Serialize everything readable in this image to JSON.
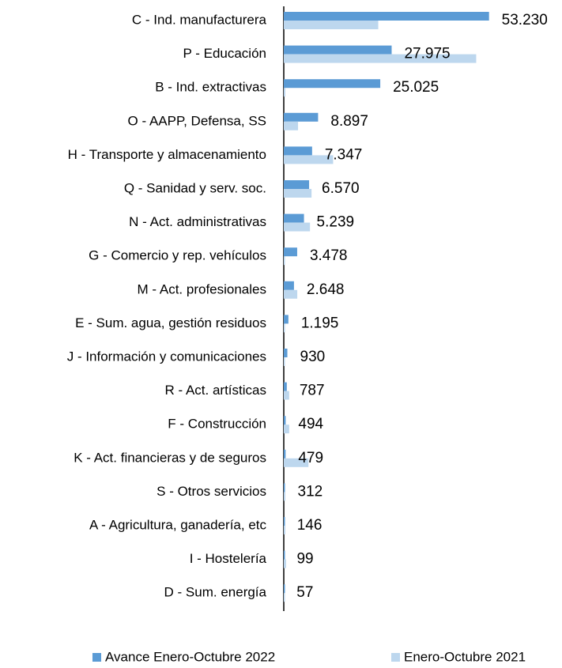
{
  "chart_data": {
    "type": "bar",
    "orientation": "horizontal",
    "categories": [
      "C - Ind. manufacturera",
      "P - Educación",
      "B - Ind. extractivas",
      "O - AAPP, Defensa, SS",
      "H - Transporte y almacenamiento",
      "Q - Sanidad y serv. soc.",
      "N - Act. administrativas",
      "G - Comercio y rep. vehículos",
      "M - Act. profesionales",
      "E - Sum. agua, gestión residuos",
      "J - Información y comunicaciones",
      "R - Act. artísticas",
      "F - Construcción",
      "K - Act. financieras y de seguros",
      "S - Otros servicios",
      "A - Agricultura, ganadería, etc",
      "I - Hostelería",
      "D - Sum. energía"
    ],
    "series": [
      {
        "name": "Avance Enero-Octubre 2022",
        "color": "#5b9bd5",
        "values": [
          53230,
          27975,
          25025,
          8897,
          7347,
          6570,
          5239,
          3478,
          2648,
          1195,
          930,
          787,
          494,
          479,
          312,
          146,
          99,
          57
        ],
        "value_labels": [
          "53.230",
          "27.975",
          "25.025",
          "8.897",
          "7.347",
          "6.570",
          "5.239",
          "3.478",
          "2.648",
          "1.195",
          "930",
          "787",
          "494",
          "479",
          "312",
          "146",
          "99",
          "57"
        ]
      },
      {
        "name": "Enero-Octubre 2021",
        "color": "#bdd7ee",
        "values": [
          24500,
          49900,
          400,
          3700,
          12800,
          7200,
          6800,
          200,
          3500,
          200,
          200,
          1400,
          1400,
          6400,
          400,
          400,
          600,
          200
        ]
      }
    ],
    "xlim": [
      0,
      53500
    ]
  }
}
